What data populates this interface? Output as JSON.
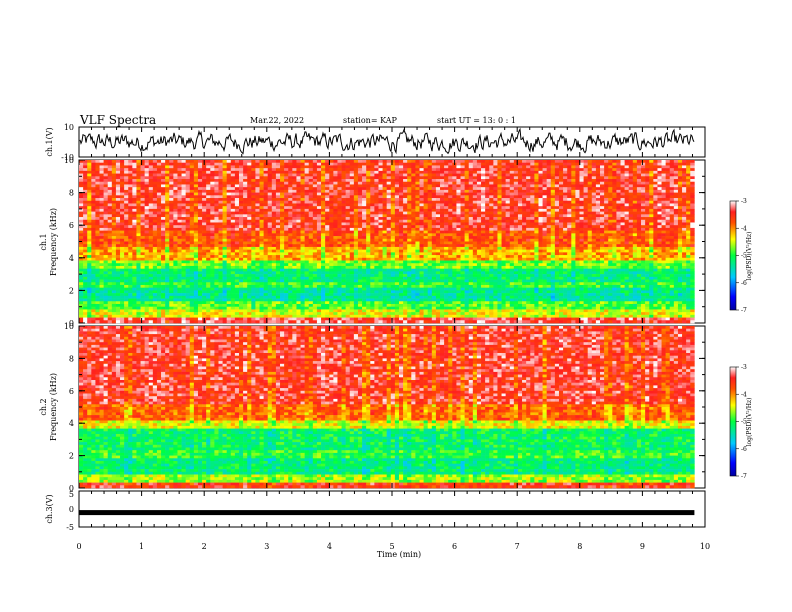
{
  "header": {
    "title": "VLF Spectra",
    "date": "Mar.22, 2022",
    "station": "station= KAP",
    "start": "start  UT =   13: 0  : 1"
  },
  "chart_data": [
    {
      "type": "line",
      "panel": "ch1-waveform",
      "ylabel": "ch.1(V)",
      "ylim": [
        -10,
        10
      ],
      "yticks": [
        "10",
        "-10"
      ],
      "xlim": [
        0,
        10
      ],
      "description_values": {
        "mean": 0,
        "typical_range": [
          -6,
          6
        ]
      }
    },
    {
      "type": "heatmap",
      "panel": "ch1-spectrogram",
      "ylabel": "ch.1\nFrequency (kHz)",
      "ylabel_line1": "ch.1",
      "ylabel_line2": "Frequency (kHz)",
      "ylim": [
        0,
        10
      ],
      "yticks": [
        "0",
        "2",
        "4",
        "6",
        "8",
        "10"
      ],
      "xlim": [
        0,
        9.83
      ],
      "colorbar": {
        "label": "log(PSD)(V²/Hz)",
        "range": [
          -7,
          -3
        ],
        "ticks": [
          "-3",
          "-4",
          "-5",
          "-6",
          "-7"
        ]
      },
      "bands": [
        {
          "from": 0,
          "to": 0.4,
          "level": -3.3
        },
        {
          "from": 0.4,
          "to": 0.9,
          "level": -4.4
        },
        {
          "from": 0.9,
          "to": 1.3,
          "level": -4.8
        },
        {
          "from": 1.3,
          "to": 2.1,
          "level": -5.3
        },
        {
          "from": 2.1,
          "to": 2.5,
          "level": -4.9
        },
        {
          "from": 2.5,
          "to": 3.4,
          "level": -5.2
        },
        {
          "from": 3.4,
          "to": 3.8,
          "level": -4.7
        },
        {
          "from": 3.8,
          "to": 4.6,
          "level": -4.1
        },
        {
          "from": 4.6,
          "to": 5.6,
          "level": -3.7
        },
        {
          "from": 5.6,
          "to": 10,
          "level": -3.4
        }
      ]
    },
    {
      "type": "heatmap",
      "panel": "ch2-spectrogram",
      "ylabel": "ch.2\nFrequency (kHz)",
      "ylabel_line1": "ch.2",
      "ylabel_line2": "Frequency (kHz)",
      "ylim": [
        0,
        10
      ],
      "yticks": [
        "0",
        "2",
        "4",
        "6",
        "8",
        "10"
      ],
      "xlim": [
        0,
        9.83
      ],
      "colorbar": {
        "label": "log(PSD)(V²/Hz)",
        "range": [
          -7,
          -3
        ],
        "ticks": [
          "-3",
          "-4",
          "-5",
          "-6",
          "-7"
        ]
      },
      "bands": [
        {
          "from": 0,
          "to": 0.4,
          "level": -3.5
        },
        {
          "from": 0.4,
          "to": 0.9,
          "level": -4.6
        },
        {
          "from": 0.9,
          "to": 1.9,
          "level": -5.2
        },
        {
          "from": 1.9,
          "to": 2.3,
          "level": -4.9
        },
        {
          "from": 2.3,
          "to": 3.6,
          "level": -5.1
        },
        {
          "from": 3.6,
          "to": 4.2,
          "level": -4.4
        },
        {
          "from": 4.2,
          "to": 5.2,
          "level": -3.8
        },
        {
          "from": 5.2,
          "to": 10,
          "level": -3.4
        }
      ]
    },
    {
      "type": "line",
      "panel": "ch3-waveform",
      "ylabel": "ch.3(V)",
      "ylim": [
        -5,
        5
      ],
      "yticks": [
        "5",
        "0",
        "-5"
      ],
      "xlim": [
        0,
        10
      ],
      "level": -1,
      "xlabel": "Time (min)",
      "xticks": [
        "0",
        "1",
        "2",
        "3",
        "4",
        "5",
        "6",
        "7",
        "8",
        "9",
        "10"
      ]
    }
  ]
}
